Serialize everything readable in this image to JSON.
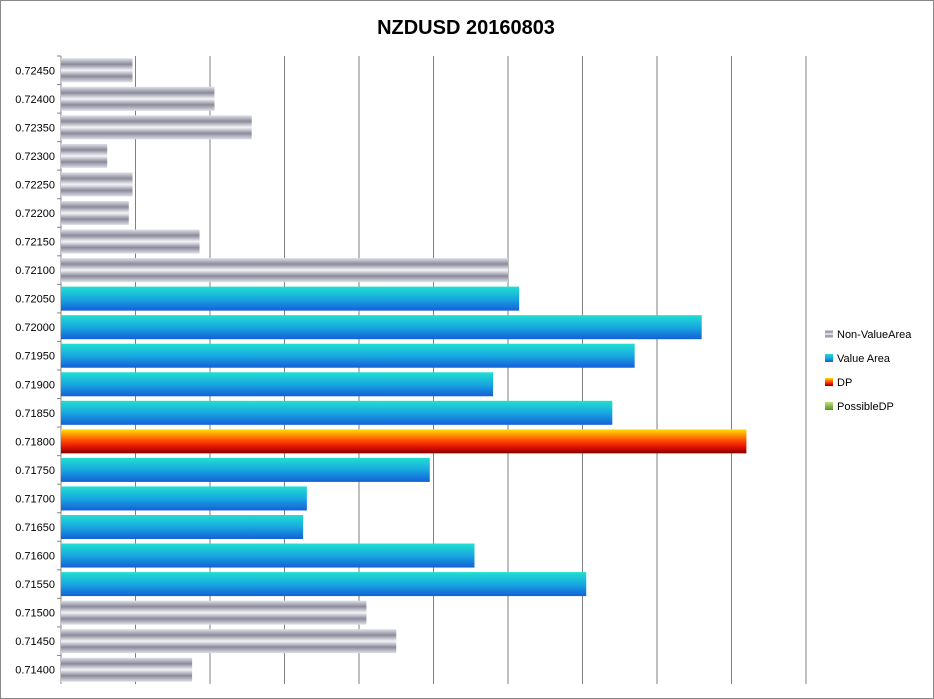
{
  "chart_data": {
    "type": "bar",
    "orientation": "horizontal",
    "title": "NZDUSD 20160803",
    "xlabel": "",
    "ylabel": "",
    "xlim": [
      0,
      100
    ],
    "grid": true,
    "legend_position": "right",
    "categories": [
      "0.72450",
      "0.72400",
      "0.72350",
      "0.72300",
      "0.72250",
      "0.72200",
      "0.72150",
      "0.72100",
      "0.72050",
      "0.72000",
      "0.71950",
      "0.71900",
      "0.71850",
      "0.71800",
      "0.71750",
      "0.71700",
      "0.71650",
      "0.71600",
      "0.71550",
      "0.71500",
      "0.71450",
      "0.71400"
    ],
    "values": [
      9.6,
      20.6,
      25.6,
      6.2,
      9.6,
      9.1,
      18.6,
      60.0,
      61.5,
      86.0,
      77.0,
      58.0,
      74.0,
      92.0,
      49.5,
      33.0,
      32.5,
      55.5,
      70.5,
      41.0,
      45.0,
      17.6
    ],
    "series_of_category": [
      "Non-ValueArea",
      "Non-ValueArea",
      "Non-ValueArea",
      "Non-ValueArea",
      "Non-ValueArea",
      "Non-ValueArea",
      "Non-ValueArea",
      "Non-ValueArea",
      "Value Area",
      "Value Area",
      "Value Area",
      "Value Area",
      "Value Area",
      "DP",
      "Value Area",
      "Value Area",
      "Value Area",
      "Value Area",
      "Value Area",
      "Non-ValueArea",
      "Non-ValueArea",
      "Non-ValueArea"
    ],
    "series": [
      {
        "name": "Non-ValueArea",
        "color": "#a6a6b4"
      },
      {
        "name": "Value Area",
        "color": "#1e90d8"
      },
      {
        "name": "DP",
        "color": "#ff3a00"
      },
      {
        "name": "PossibleDP",
        "color": "#7fb040"
      }
    ]
  }
}
